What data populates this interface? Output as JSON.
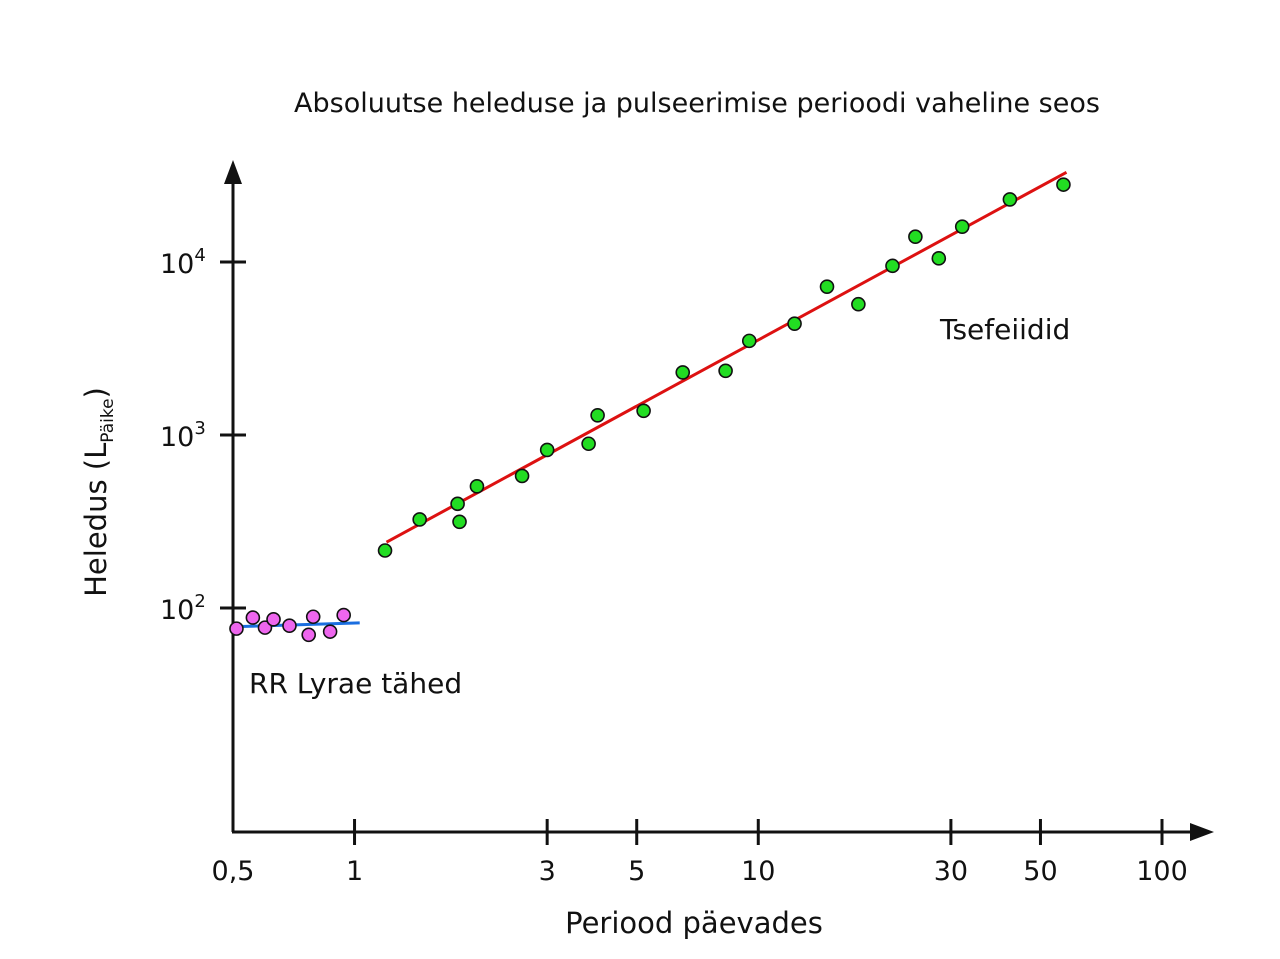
{
  "chart_data": {
    "type": "scatter",
    "title": "Absoluutse heleduse ja pulseerimise perioodi vaheline seos",
    "xlabel": "Periood päevades",
    "ylabel": {
      "main": "Heledus (L",
      "subscript": "Päike",
      "close": ")"
    },
    "x_scale": "log",
    "y_scale": "log",
    "xlim": [
      0.5,
      140
    ],
    "ylim": [
      10,
      35000
    ],
    "x_ticks": [
      {
        "value": 0.5,
        "label": "0,5"
      },
      {
        "value": 1,
        "label": "1"
      },
      {
        "value": 3,
        "label": "3"
      },
      {
        "value": 5,
        "label": "5"
      },
      {
        "value": 10,
        "label": "10"
      },
      {
        "value": 30,
        "label": "30"
      },
      {
        "value": 50,
        "label": "50"
      },
      {
        "value": 100,
        "label": "100"
      }
    ],
    "y_ticks": [
      {
        "value": 100,
        "base": "10",
        "exp": "2"
      },
      {
        "value": 1000,
        "base": "10",
        "exp": "3"
      },
      {
        "value": 10000,
        "base": "10",
        "exp": "4"
      }
    ],
    "series": [
      {
        "name": "RR Lyrae tähed",
        "marker_color": "#ee66ee",
        "fit_color": "#1a6ee0",
        "fit": [
          [
            0.51,
            78
          ],
          [
            1.03,
            82
          ]
        ],
        "points": [
          [
            0.51,
            76
          ],
          [
            0.56,
            88
          ],
          [
            0.6,
            77
          ],
          [
            0.63,
            86
          ],
          [
            0.69,
            79
          ],
          [
            0.77,
            70
          ],
          [
            0.79,
            89
          ],
          [
            0.87,
            73
          ],
          [
            0.94,
            91
          ]
        ]
      },
      {
        "name": "Tsefeiidid",
        "marker_color": "#22dd22",
        "fit_color": "#dd1111",
        "fit": [
          [
            1.2,
            240
          ],
          [
            58,
            33000
          ]
        ],
        "points": [
          [
            1.19,
            215
          ],
          [
            1.45,
            325
          ],
          [
            1.8,
            400
          ],
          [
            1.82,
            315
          ],
          [
            2.01,
            505
          ],
          [
            2.6,
            580
          ],
          [
            3.0,
            820
          ],
          [
            3.8,
            890
          ],
          [
            4.0,
            1300
          ],
          [
            5.2,
            1380
          ],
          [
            6.5,
            2300
          ],
          [
            8.3,
            2350
          ],
          [
            9.5,
            3500
          ],
          [
            12.3,
            4400
          ],
          [
            14.8,
            7200
          ],
          [
            17.7,
            5700
          ],
          [
            21.5,
            9500
          ],
          [
            24.5,
            14000
          ],
          [
            28.0,
            10500
          ],
          [
            32.0,
            16000
          ],
          [
            42.0,
            23000
          ],
          [
            57.0,
            28000
          ]
        ]
      }
    ],
    "annotations": [
      {
        "text": "RR Lyrae tähed",
        "series": 0
      },
      {
        "text": "Tsefeiidid",
        "series": 1
      }
    ],
    "grid": false,
    "legend": "none"
  }
}
